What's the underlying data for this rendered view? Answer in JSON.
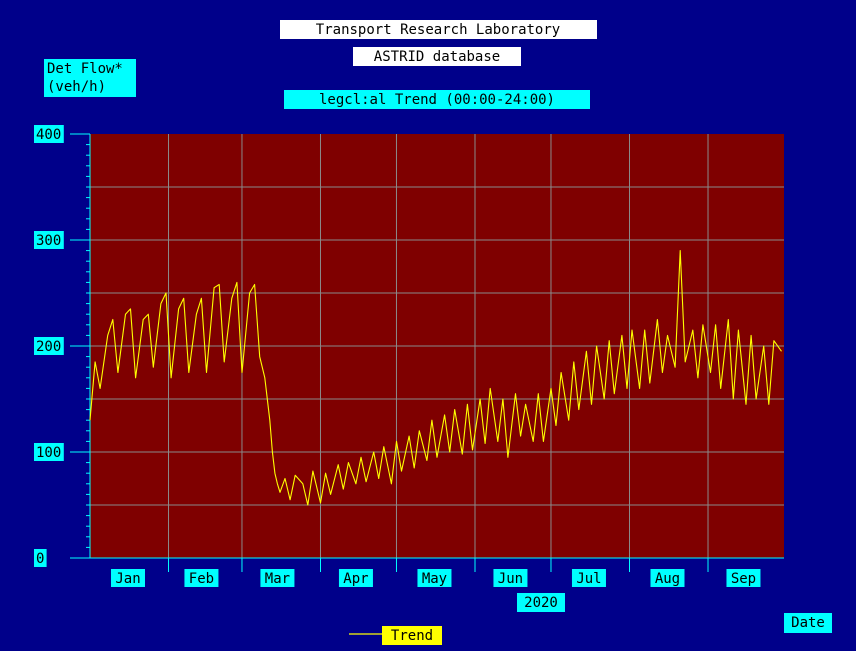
{
  "header": {
    "lab": "Transport Research Laboratory",
    "database": "ASTRID database",
    "subtitle": "legcl:al Trend (00:00-24:00)"
  },
  "colors": {
    "background": "#00008a",
    "plot_area": "#7f0000",
    "grid": "#8a8a8a",
    "label_box": "#00ffff",
    "title_box": "#ffffff",
    "series": "#ffff00"
  },
  "chart_data": {
    "type": "line",
    "title": "legcl:al Trend (00:00-24:00)",
    "ylabel": "Det Flow*\n(veh/h)",
    "ylabel_lines": [
      "Det Flow*",
      "(veh/h)"
    ],
    "xlabel": "Date",
    "year_label": "2020",
    "ylim": [
      0,
      400
    ],
    "yticks": [
      0,
      100,
      200,
      300,
      400
    ],
    "x_unit": "day of year 2020",
    "xlim": [
      1,
      275
    ],
    "months": [
      {
        "label": "Jan",
        "start": 1,
        "mid": 16
      },
      {
        "label": "Feb",
        "start": 32,
        "mid": 45
      },
      {
        "label": "Mar",
        "start": 61,
        "mid": 75
      },
      {
        "label": "Apr",
        "start": 92,
        "mid": 106
      },
      {
        "label": "May",
        "start": 122,
        "mid": 137
      },
      {
        "label": "Jun",
        "start": 153,
        "mid": 167
      },
      {
        "label": "Jul",
        "start": 183,
        "mid": 198
      },
      {
        "label": "Aug",
        "start": 214,
        "mid": 229
      },
      {
        "label": "Sep",
        "start": 245,
        "mid": 259
      }
    ],
    "grid": true,
    "legend_position": "bottom-center",
    "series": [
      {
        "name": "Trend",
        "x": [
          1,
          3,
          5,
          8,
          10,
          12,
          15,
          17,
          19,
          22,
          24,
          26,
          29,
          31,
          33,
          36,
          38,
          40,
          43,
          45,
          47,
          50,
          52,
          54,
          57,
          59,
          61,
          64,
          66,
          68,
          70,
          71,
          72,
          73,
          74,
          75,
          76,
          78,
          80,
          82,
          85,
          87,
          89,
          92,
          94,
          96,
          99,
          101,
          103,
          106,
          108,
          110,
          113,
          115,
          117,
          120,
          122,
          124,
          127,
          129,
          131,
          134,
          136,
          138,
          141,
          143,
          145,
          148,
          150,
          152,
          155,
          157,
          159,
          162,
          164,
          166,
          169,
          171,
          173,
          176,
          178,
          180,
          183,
          185,
          187,
          190,
          192,
          194,
          197,
          199,
          201,
          204,
          206,
          208,
          211,
          213,
          215,
          218,
          220,
          222,
          225,
          227,
          229,
          232,
          234,
          236,
          239,
          241,
          243,
          246,
          248,
          250,
          253,
          255,
          257,
          260,
          262,
          264,
          267,
          269,
          271,
          274
        ],
        "y": [
          130,
          185,
          160,
          210,
          225,
          175,
          230,
          235,
          170,
          225,
          230,
          180,
          240,
          250,
          170,
          235,
          245,
          175,
          230,
          245,
          175,
          255,
          258,
          185,
          245,
          260,
          175,
          250,
          258,
          190,
          170,
          150,
          130,
          100,
          80,
          70,
          62,
          75,
          55,
          78,
          70,
          50,
          82,
          52,
          80,
          60,
          88,
          65,
          90,
          70,
          95,
          72,
          100,
          75,
          105,
          70,
          110,
          82,
          115,
          85,
          120,
          92,
          130,
          95,
          135,
          100,
          140,
          98,
          145,
          102,
          150,
          108,
          160,
          110,
          150,
          95,
          155,
          115,
          145,
          110,
          155,
          110,
          160,
          125,
          175,
          130,
          185,
          140,
          195,
          145,
          200,
          150,
          205,
          155,
          210,
          160,
          215,
          160,
          215,
          165,
          225,
          175,
          210,
          180,
          290,
          185,
          215,
          170,
          220,
          175,
          220,
          160,
          225,
          150,
          215,
          145,
          210,
          150,
          200,
          145,
          205,
          195
        ]
      }
    ]
  }
}
